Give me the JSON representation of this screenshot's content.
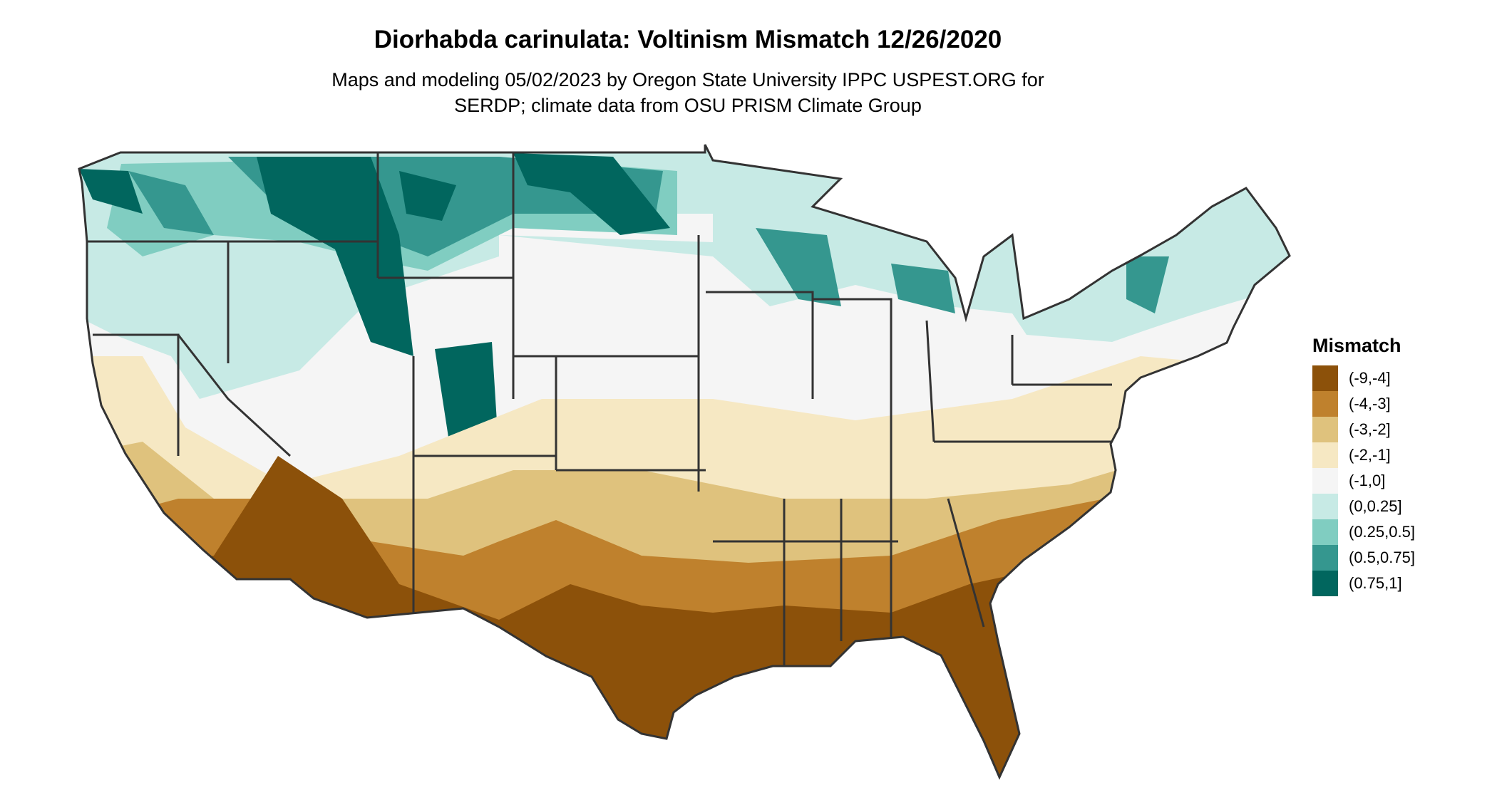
{
  "title": "Diorhabda carinulata: Voltinism Mismatch 12/26/2020",
  "subtitle_line1": "Maps and modeling 05/02/2023 by Oregon State University IPPC USPEST.ORG for",
  "subtitle_line2": "SERDP; climate data from OSU PRISM Climate Group",
  "legend": {
    "title": "Mismatch",
    "items": [
      {
        "label": "(-9,-4]",
        "color": "#8c510a"
      },
      {
        "label": "(-4,-3]",
        "color": "#bf812d"
      },
      {
        "label": "(-3,-2]",
        "color": "#dfc27d"
      },
      {
        "label": "(-2,-1]",
        "color": "#f6e8c3"
      },
      {
        "label": "(-1,0]",
        "color": "#f5f5f5"
      },
      {
        "label": "(0,0.25]",
        "color": "#c7eae5"
      },
      {
        "label": "(0.25,0.5]",
        "color": "#80cdc1"
      },
      {
        "label": "(0.5,0.75]",
        "color": "#35978f"
      },
      {
        "label": "(0.75,1]",
        "color": "#01665e"
      }
    ]
  },
  "map": {
    "region": "contiguous United States",
    "border_color": "#333333"
  }
}
